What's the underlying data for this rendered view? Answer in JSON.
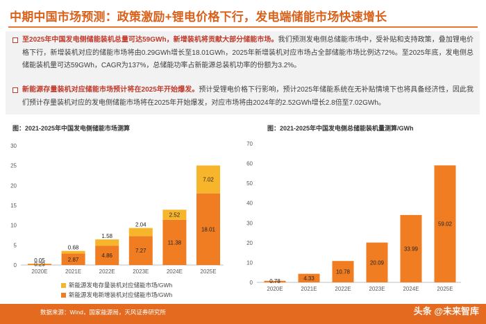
{
  "header": {
    "title": "中期中国市场预测：政策激励+锂电价格下行，发电端储能市场快速增长"
  },
  "summary": {
    "bullet1_highlight": "至2025年中国发电侧储能装机总量可达59GWh，新增装机将贡献大部分储能市场。",
    "bullet1_text": "我们预测发电侧总储能市场中，受补贴和支持政策，叠加锂电价格下行，新增装机对应的储能市场将由0.29GWh增长至18.01GWh，2025年新增装机对应市场占全部储能市场比例达72%。至2025年底，发电侧总储能装机量可达59GWh，CAGR为137%，总储能功率占新能源总装机功率的份额为3.2%。",
    "bullet2_highlight": "新能源存量装机对应储能市场预计将在2025年开始爆发。",
    "bullet2_text": "预计受锂电价格下行影响，预计2025年储能系统在无补贴情境下也将具备经济性，因此我们预计存量装机对应的发电侧储能市场将在2025年开始爆发，对应市场将由2024年的2.52GWh增长2.8倍至7.02GWh。"
  },
  "colors": {
    "accent": "#e8752d",
    "bar_new": "#f07d22",
    "bar_existing": "#f7b52c",
    "bar_total": "#f07d22"
  },
  "chart_data": [
    {
      "type": "bar",
      "stacked": true,
      "title": "图：2021-2025年中国发电侧储能市场测算",
      "categories": [
        "2020E",
        "2021E",
        "2022E",
        "2023E",
        "2024E",
        "2025E"
      ],
      "series": [
        {
          "name": "新能源发电新增装机对应储能市场/GWh",
          "values": [
            0.29,
            2.87,
            4.86,
            7.27,
            11.38,
            18.01
          ]
        },
        {
          "name": "新能源发电存量装机对应储能市场/GWh",
          "values": [
            0.05,
            0.68,
            1.58,
            2.04,
            2.52,
            7.02
          ]
        }
      ],
      "value_labels": [
        [
          "0.29",
          "2.87",
          "4.86",
          "7.27",
          "11.38",
          "18.01"
        ],
        [
          "0.05",
          "0.68",
          "1.58",
          "2.04",
          "2.52",
          "7.02"
        ]
      ],
      "ylim": [
        0,
        30
      ],
      "yticks": [
        "0",
        "5",
        "10",
        "15",
        "20",
        "25",
        "30"
      ],
      "grid": false,
      "legend": "bottom"
    },
    {
      "type": "bar",
      "title": "图：2021-2025年中国发电侧总储能装机量测算/GWh",
      "categories": [
        "2020E",
        "2021E",
        "2022E",
        "2023E",
        "2024E",
        "2025E"
      ],
      "values": [
        0.78,
        4.33,
        10.78,
        20.09,
        33.99,
        59.02
      ],
      "value_labels": [
        "0.78",
        "4.33",
        "10.78",
        "20.09",
        "33.99",
        "59.02"
      ],
      "ylim": [
        0,
        70
      ],
      "yticks": [
        "0",
        "10",
        "20",
        "30",
        "40",
        "50",
        "60",
        "70"
      ],
      "grid": false
    }
  ],
  "footer": {
    "source": "数据来源：Wind，国家能源局，天风证券研究所",
    "watermark": "头条 @未来智库"
  }
}
